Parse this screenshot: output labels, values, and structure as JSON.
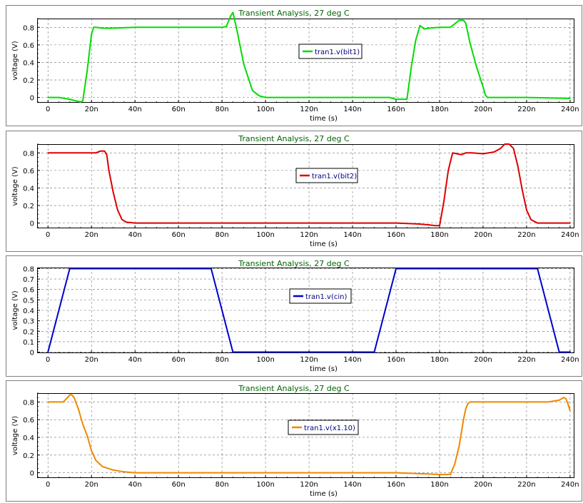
{
  "chart_data": [
    {
      "type": "line",
      "title": "Transient Analysis, 27 deg C",
      "xlabel": "time (s)",
      "ylabel": "voltage (V)",
      "xlim": [
        -5,
        242
      ],
      "ylim": [
        -0.06,
        0.9
      ],
      "x_ticks": [
        "0",
        "20n",
        "40n",
        "60n",
        "80n",
        "100n",
        "120n",
        "140n",
        "160n",
        "180n",
        "200n",
        "220n",
        "240n"
      ],
      "y_ticks": [
        "0",
        "0.2",
        "0.4",
        "0.6",
        "0.8"
      ],
      "legend_position": "center",
      "series": [
        {
          "name": "tran1.v(bit1)",
          "color": "#00dd00",
          "x": [
            0,
            5,
            10,
            13,
            15,
            16,
            18,
            20,
            21,
            22,
            25,
            30,
            40,
            60,
            70,
            80,
            82,
            84,
            85,
            87,
            90,
            94,
            97,
            100,
            120,
            140,
            157,
            160,
            162,
            165,
            167,
            169,
            171,
            172,
            173,
            175,
            180,
            185,
            187,
            189,
            191,
            192,
            194,
            197,
            200,
            201,
            202,
            210,
            220,
            240
          ],
          "y": [
            0,
            0,
            -0.02,
            -0.04,
            -0.05,
            -0.04,
            0.3,
            0.72,
            0.8,
            0.8,
            0.79,
            0.79,
            0.8,
            0.8,
            0.8,
            0.8,
            0.81,
            0.93,
            0.97,
            0.75,
            0.38,
            0.08,
            0.02,
            0,
            0,
            0,
            0,
            -0.02,
            -0.02,
            -0.02,
            0.35,
            0.65,
            0.82,
            0.8,
            0.78,
            0.79,
            0.8,
            0.8,
            0.84,
            0.88,
            0.88,
            0.85,
            0.62,
            0.35,
            0.12,
            0.03,
            0,
            0,
            0,
            -0.01
          ]
        }
      ]
    },
    {
      "type": "line",
      "title": "Transient Analysis, 27 deg C",
      "xlabel": "time (s)",
      "ylabel": "voltage (V)",
      "xlim": [
        -5,
        242
      ],
      "ylim": [
        -0.06,
        0.9
      ],
      "x_ticks": [
        "0",
        "20n",
        "40n",
        "60n",
        "80n",
        "100n",
        "120n",
        "140n",
        "160n",
        "180n",
        "200n",
        "220n",
        "240n"
      ],
      "y_ticks": [
        "0",
        "0.2",
        "0.4",
        "0.6",
        "0.8"
      ],
      "legend_position": "center",
      "series": [
        {
          "name": "tran1.v(bit2)",
          "color": "#dd0000",
          "x": [
            0,
            5,
            10,
            20,
            22,
            24,
            26,
            27,
            28,
            30,
            32,
            34,
            36,
            40,
            60,
            100,
            140,
            160,
            170,
            175,
            178,
            180,
            182,
            184,
            186,
            188,
            190,
            192,
            195,
            200,
            205,
            208,
            210,
            212,
            214,
            216,
            218,
            220,
            222,
            225,
            230,
            240
          ],
          "y": [
            0.8,
            0.8,
            0.8,
            0.8,
            0.8,
            0.82,
            0.82,
            0.78,
            0.6,
            0.35,
            0.15,
            0.04,
            0.01,
            0,
            0,
            0,
            0,
            0,
            -0.01,
            -0.02,
            -0.03,
            -0.03,
            0.25,
            0.6,
            0.8,
            0.79,
            0.78,
            0.8,
            0.8,
            0.79,
            0.81,
            0.85,
            0.9,
            0.9,
            0.85,
            0.65,
            0.38,
            0.15,
            0.04,
            0,
            0,
            0
          ]
        }
      ]
    },
    {
      "type": "line",
      "title": "Transient Analysis, 27 deg C",
      "xlabel": "time (s)",
      "ylabel": "voltage (V)",
      "xlim": [
        -5,
        242
      ],
      "ylim": [
        -0.01,
        0.81
      ],
      "x_ticks": [
        "0",
        "20n",
        "40n",
        "60n",
        "80n",
        "100n",
        "120n",
        "140n",
        "160n",
        "180n",
        "200n",
        "220n",
        "240n"
      ],
      "y_ticks": [
        "0",
        "0.1",
        "0.2",
        "0.3",
        "0.4",
        "0.5",
        "0.6",
        "0.7",
        "0.8"
      ],
      "legend_position": "center",
      "series": [
        {
          "name": "tran1.v(cin)",
          "color": "#0000cc",
          "x": [
            0,
            10,
            75,
            85,
            150,
            160,
            225,
            235,
            240
          ],
          "y": [
            0,
            0.8,
            0.8,
            0,
            0,
            0.8,
            0.8,
            0,
            0
          ]
        }
      ]
    },
    {
      "type": "line",
      "title": "Transient Analysis, 27 deg C",
      "xlabel": "time (s)",
      "ylabel": "voltage (V)",
      "xlim": [
        -5,
        242
      ],
      "ylim": [
        -0.06,
        0.9
      ],
      "x_ticks": [
        "0",
        "20n",
        "40n",
        "60n",
        "80n",
        "100n",
        "120n",
        "140n",
        "160n",
        "180n",
        "200n",
        "220n",
        "240n"
      ],
      "y_ticks": [
        "0",
        "0.2",
        "0.4",
        "0.6",
        "0.8"
      ],
      "legend_position": "center",
      "series": [
        {
          "name": "tran1.v(x1.10)",
          "color": "#ee8800",
          "x": [
            0,
            4,
            7,
            9,
            10,
            11,
            12,
            14,
            16,
            18,
            20,
            22,
            25,
            30,
            35,
            40,
            60,
            100,
            140,
            160,
            170,
            180,
            185,
            187,
            189,
            190,
            191,
            192,
            193,
            194,
            195,
            197,
            200,
            220,
            230,
            235,
            237,
            238,
            239,
            240
          ],
          "y": [
            0.8,
            0.8,
            0.8,
            0.85,
            0.88,
            0.88,
            0.85,
            0.72,
            0.55,
            0.42,
            0.25,
            0.14,
            0.07,
            0.03,
            0.01,
            0,
            0,
            0,
            0,
            0,
            -0.01,
            -0.02,
            -0.02,
            0.1,
            0.3,
            0.45,
            0.6,
            0.72,
            0.78,
            0.8,
            0.8,
            0.8,
            0.8,
            0.8,
            0.8,
            0.82,
            0.85,
            0.84,
            0.78,
            0.7
          ]
        }
      ]
    }
  ]
}
